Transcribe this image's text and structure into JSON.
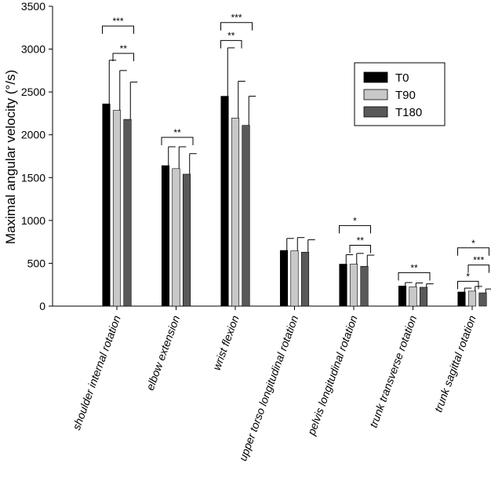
{
  "chart_data": {
    "type": "bar",
    "ylabel": "Maximal angular velocity (°/s)",
    "xlabel": "",
    "ylim": [
      0,
      3500
    ],
    "yticks": [
      0,
      500,
      1000,
      1500,
      2000,
      2500,
      3000,
      3500
    ],
    "grid": false,
    "legend_position": "top-right",
    "categories": [
      "shoulder internal rotation",
      "elbow extension",
      "wrist flexion",
      "upper torso longitudinal rotation",
      "pelvis longitudinal rotation",
      "trunk transverse rotation",
      "trunk sagittal rotation"
    ],
    "series": [
      {
        "name": "T0",
        "color": "#000000",
        "values": [
          2360,
          1640,
          2450,
          650,
          490,
          235,
          165
        ],
        "errors": [
          510,
          220,
          565,
          140,
          110,
          40,
          45
        ]
      },
      {
        "name": "T90",
        "color": "#c8c8c8",
        "values": [
          2285,
          1605,
          2195,
          645,
          490,
          225,
          175
        ],
        "errors": [
          465,
          255,
          430,
          155,
          125,
          45,
          55
        ]
      },
      {
        "name": "T180",
        "color": "#595959",
        "values": [
          2180,
          1540,
          2110,
          630,
          465,
          220,
          155
        ],
        "errors": [
          435,
          240,
          340,
          145,
          130,
          40,
          45
        ]
      }
    ],
    "annotations": [
      {
        "category": 0,
        "from": "T0",
        "to": "T180",
        "label": "***",
        "y": 3270
      },
      {
        "category": 0,
        "from": "T90",
        "to": "T180",
        "label": "**",
        "y": 2950
      },
      {
        "category": 1,
        "from": "T0",
        "to": "T180",
        "label": "**",
        "y": 1970
      },
      {
        "category": 2,
        "from": "T0",
        "to": "T180",
        "label": "***",
        "y": 3310
      },
      {
        "category": 2,
        "from": "T0",
        "to": "T90",
        "label": "**",
        "y": 3100
      },
      {
        "category": 4,
        "from": "T0",
        "to": "T180",
        "label": "*",
        "y": 940
      },
      {
        "category": 4,
        "from": "T90",
        "to": "T180",
        "label": "**",
        "y": 710
      },
      {
        "category": 5,
        "from": "T0",
        "to": "T180",
        "label": "**",
        "y": 390
      },
      {
        "category": 6,
        "from": "T0",
        "to": "T180",
        "label": "*",
        "y": 680
      },
      {
        "category": 6,
        "from": "T90",
        "to": "T180",
        "label": "***",
        "y": 480
      },
      {
        "category": 6,
        "from": "T0",
        "to": "T90",
        "label": "*",
        "y": 290
      }
    ]
  }
}
